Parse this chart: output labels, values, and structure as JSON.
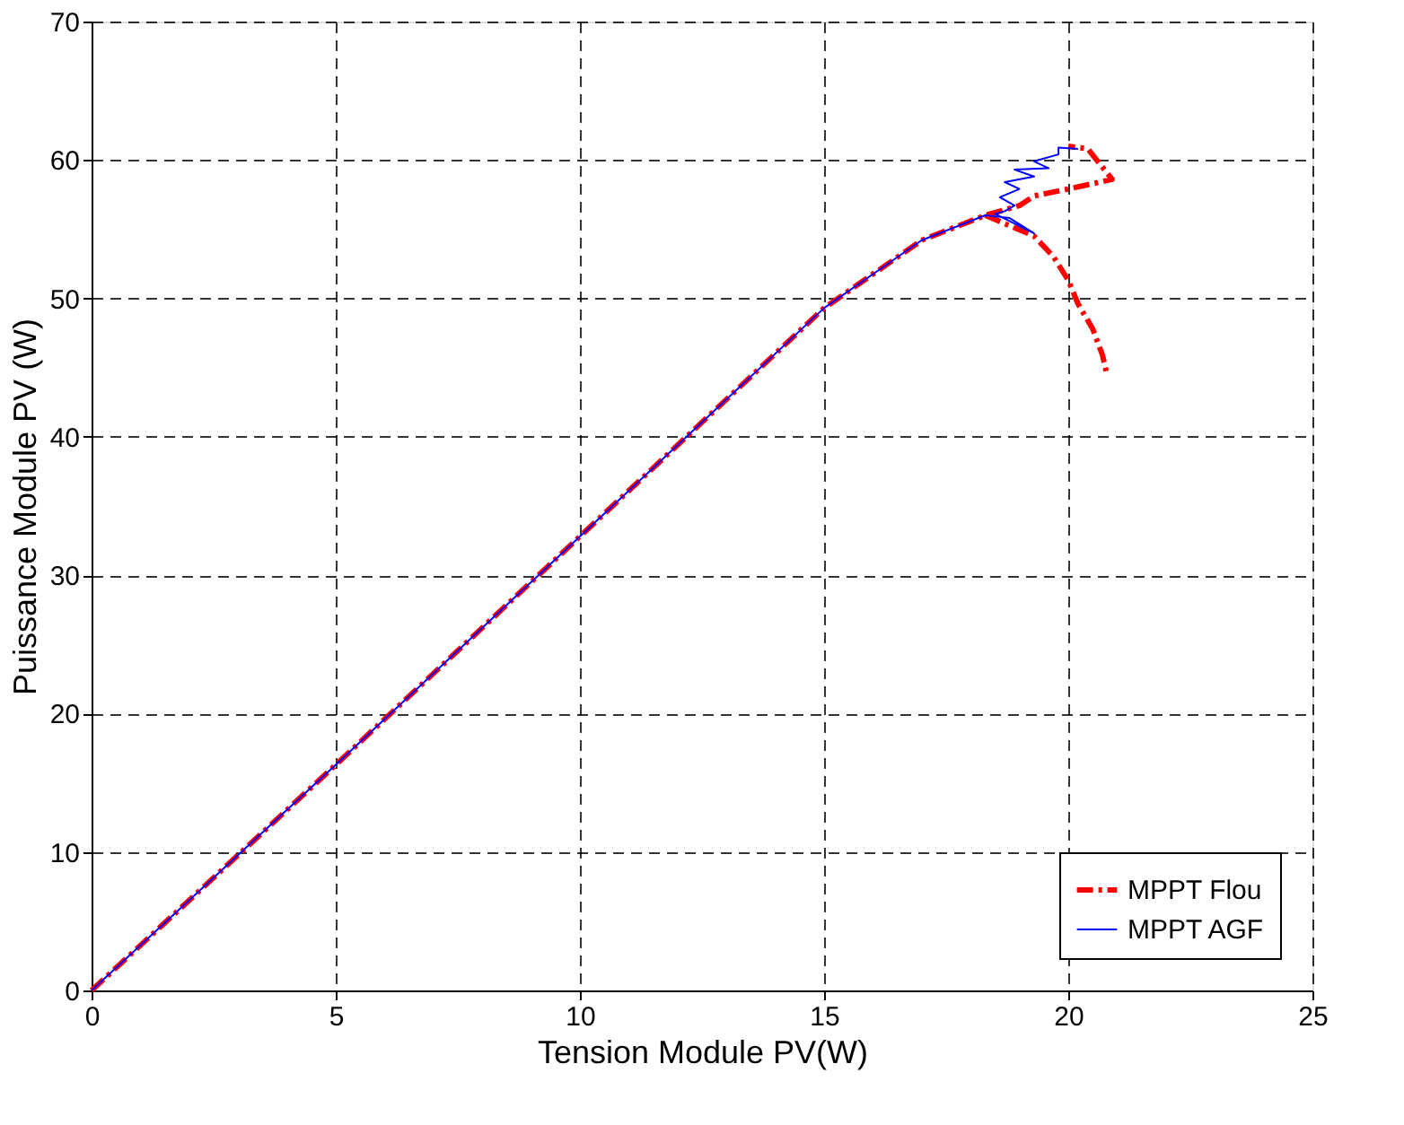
{
  "chart_data": {
    "type": "line",
    "xlabel": "Tension Module PV(W)",
    "ylabel": "Puissance Module PV (W)",
    "xlim": [
      0,
      25
    ],
    "xticks": [
      0,
      5,
      10,
      15,
      20,
      25
    ],
    "ylim": [
      0,
      70
    ],
    "yticks": [
      0,
      10,
      20,
      30,
      40,
      50,
      60,
      70
    ],
    "grid": true,
    "legend": "bottom right",
    "marker": "none",
    "series": [
      {
        "name": "MPPT Flou",
        "color": "#ff0000",
        "line_style": "dashed",
        "x": [
          0,
          5,
          10,
          15,
          17,
          18.3,
          19.0,
          19.3,
          20.0,
          20.9,
          20.4,
          20.0,
          null,
          18.3,
          19.3,
          19.7,
          20.0,
          20.2,
          20.5,
          20.7,
          20.8
        ],
        "values": [
          0,
          16.3,
          32.8,
          49.3,
          54.2,
          56,
          56.7,
          57.4,
          57.9,
          58.6,
          60.8,
          61,
          null,
          56,
          54.5,
          53,
          51.3,
          49.6,
          47.8,
          45.9,
          44.4
        ]
      },
      {
        "name": "MPPT AGF",
        "color": "#0000ff",
        "line_style": "solid",
        "x": [
          0,
          5,
          10,
          15,
          17,
          18.3,
          18.8,
          19.3,
          18.5,
          18.7,
          18.9,
          18.6,
          19.0,
          18.7,
          19.3,
          18.9,
          19.6,
          19.3,
          19.8,
          19.8,
          20.2
        ],
        "values": [
          0,
          16.3,
          32.8,
          49.3,
          54.2,
          56,
          55.8,
          54.7,
          56.1,
          56.3,
          56.7,
          57.3,
          57.9,
          58.4,
          58.8,
          59.3,
          59.4,
          59.9,
          60.4,
          60.9,
          60.8
        ]
      }
    ]
  }
}
